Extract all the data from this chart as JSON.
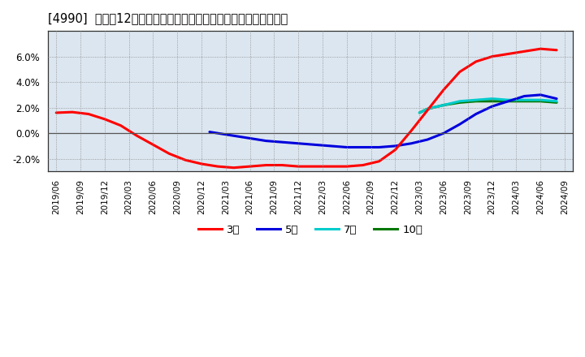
{
  "title": "[4990]  売上高12か月移動合計の対前年同期増減率の平均値の推移",
  "background_color": "#ffffff",
  "plot_bg_color": "#dce6f0",
  "grid_color": "#888888",
  "ylim": [
    -0.03,
    0.08
  ],
  "yticks": [
    -0.02,
    0.0,
    0.02,
    0.04,
    0.06
  ],
  "series": {
    "3year": {
      "color": "#ff0000",
      "label": "3年",
      "x": [
        2019.417,
        2019.583,
        2019.75,
        2019.917,
        2020.083,
        2020.25,
        2020.417,
        2020.583,
        2020.75,
        2020.917,
        2021.083,
        2021.25,
        2021.417,
        2021.583,
        2021.75,
        2021.917,
        2022.083,
        2022.25,
        2022.417,
        2022.583,
        2022.75,
        2022.917,
        2023.083,
        2023.25,
        2023.417,
        2023.583,
        2023.75,
        2023.917,
        2024.083,
        2024.25,
        2024.417,
        2024.583
      ],
      "y": [
        0.016,
        0.0165,
        0.015,
        0.011,
        0.006,
        -0.002,
        -0.009,
        -0.016,
        -0.021,
        -0.024,
        -0.026,
        -0.027,
        -0.026,
        -0.025,
        -0.025,
        -0.026,
        -0.026,
        -0.026,
        -0.026,
        -0.025,
        -0.022,
        -0.013,
        0.002,
        0.018,
        0.034,
        0.048,
        0.056,
        0.06,
        0.062,
        0.064,
        0.066,
        0.065
      ]
    },
    "5year": {
      "color": "#0000dd",
      "label": "5年",
      "x": [
        2021.0,
        2021.083,
        2021.25,
        2021.417,
        2021.583,
        2021.75,
        2021.917,
        2022.083,
        2022.25,
        2022.417,
        2022.583,
        2022.75,
        2022.917,
        2023.083,
        2023.25,
        2023.417,
        2023.583,
        2023.75,
        2023.917,
        2024.083,
        2024.25,
        2024.417,
        2024.583
      ],
      "y": [
        0.001,
        0.0,
        -0.002,
        -0.004,
        -0.006,
        -0.007,
        -0.008,
        -0.009,
        -0.01,
        -0.011,
        -0.011,
        -0.011,
        -0.01,
        -0.008,
        -0.005,
        0.0,
        0.007,
        0.015,
        0.021,
        0.025,
        0.029,
        0.03,
        0.027
      ]
    },
    "7year": {
      "color": "#00cccc",
      "label": "7年",
      "x": [
        2023.167,
        2023.25,
        2023.417,
        2023.583,
        2023.75,
        2023.917,
        2024.083,
        2024.25,
        2024.417,
        2024.583
      ],
      "y": [
        0.016,
        0.019,
        0.022,
        0.025,
        0.026,
        0.027,
        0.026,
        0.026,
        0.026,
        0.025
      ]
    },
    "10year": {
      "color": "#007700",
      "label": "10年",
      "x": [
        2023.167,
        2023.25,
        2023.417,
        2023.583,
        2023.75,
        2023.917,
        2024.083,
        2024.25,
        2024.417,
        2024.583
      ],
      "y": [
        0.016,
        0.019,
        0.022,
        0.024,
        0.025,
        0.025,
        0.025,
        0.025,
        0.025,
        0.024
      ]
    }
  },
  "xtick_labels": [
    "2019/06",
    "2019/09",
    "2019/12",
    "2020/03",
    "2020/06",
    "2020/09",
    "2020/12",
    "2021/03",
    "2021/06",
    "2021/09",
    "2021/12",
    "2022/03",
    "2022/06",
    "2022/09",
    "2022/12",
    "2023/03",
    "2023/06",
    "2023/09",
    "2023/12",
    "2024/03",
    "2024/06",
    "2024/09"
  ],
  "xtick_values": [
    2019.417,
    2019.667,
    2019.917,
    2020.167,
    2020.417,
    2020.667,
    2020.917,
    2021.167,
    2021.417,
    2021.667,
    2021.917,
    2022.167,
    2022.417,
    2022.667,
    2022.917,
    2023.167,
    2023.417,
    2023.667,
    2023.917,
    2024.167,
    2024.417,
    2024.667
  ],
  "xlim": [
    2019.33,
    2024.75
  ],
  "legend_labels": [
    "3年",
    "5年",
    "7年",
    "10年"
  ],
  "legend_colors": [
    "#ff0000",
    "#0000dd",
    "#00cccc",
    "#007700"
  ]
}
